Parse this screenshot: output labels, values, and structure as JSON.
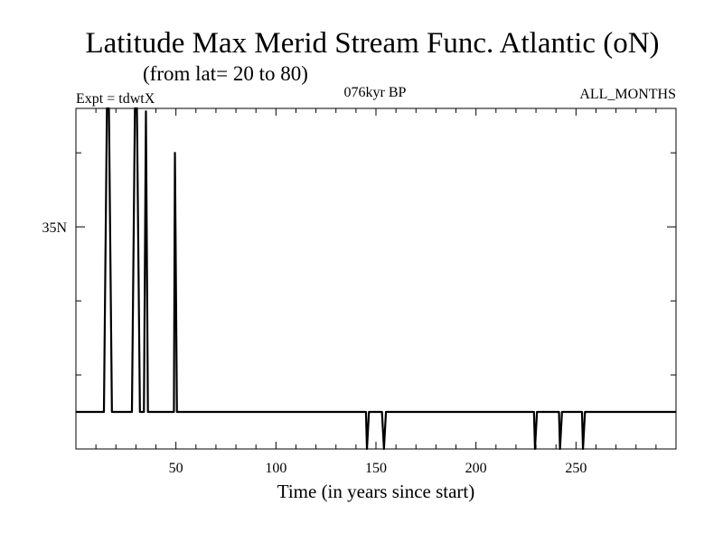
{
  "chart_data": {
    "type": "line",
    "title": "Latitude Max Merid Stream Func. Atlantic (oN)",
    "subtitle": "(from lat= 20 to 80)",
    "left_note": "Expt = tdwtX",
    "center_note": "076kyr BP",
    "right_note": "ALL_MONTHS",
    "xlabel": "Time (in years since start)",
    "ylabel": "",
    "xlim": [
      0,
      300
    ],
    "ylim": [
      20,
      43
    ],
    "x_ticks": [
      50,
      100,
      150,
      200,
      250
    ],
    "x_tick_labels": [
      "50",
      "100",
      "150",
      "200",
      "250"
    ],
    "y_tick_labels": [
      {
        "value": 35,
        "label": "35N"
      }
    ],
    "grid": false,
    "series": [
      {
        "x": [
          0,
          14,
          15.5,
          16.5,
          18,
          28,
          29.5,
          30.5,
          32,
          34,
          35,
          36,
          49,
          49.5,
          50.5,
          145,
          145.5,
          146.5,
          153,
          154,
          155,
          229,
          229.5,
          230.5,
          241.5,
          242,
          243,
          253,
          253.5,
          254.5,
          300
        ],
        "y": [
          22.5,
          22.5,
          43,
          43,
          22.5,
          22.5,
          43,
          43,
          22.5,
          22.5,
          42.8,
          22.5,
          22.5,
          40,
          22.5,
          22.5,
          20,
          22.5,
          22.5,
          20,
          22.5,
          22.5,
          20,
          22.5,
          22.5,
          20,
          22.5,
          22.5,
          20,
          22.5,
          22.5
        ]
      }
    ]
  }
}
